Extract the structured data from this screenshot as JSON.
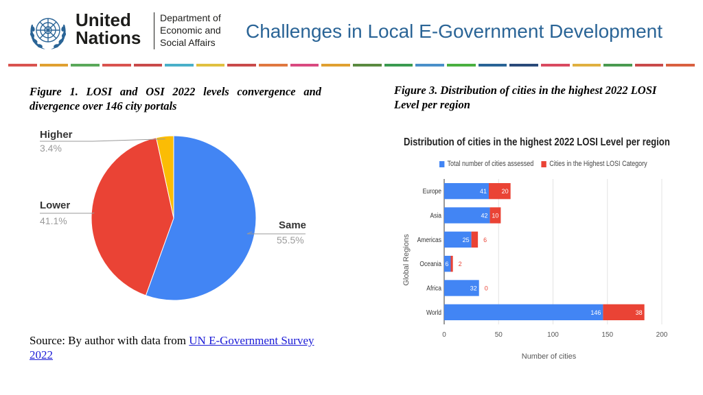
{
  "header": {
    "org_line1": "United",
    "org_line2": "Nations",
    "dept_line1": "Department of",
    "dept_line2": "Economic and",
    "dept_line3": "Social Affairs",
    "title": "Challenges in Local E-Government Development"
  },
  "colors": {
    "stripe": [
      "#d9534f",
      "#e0a030",
      "#5aa85a",
      "#d9534f",
      "#c94a4a",
      "#4ab0c9",
      "#e0c040",
      "#c94a4a",
      "#e07840",
      "#d94a80",
      "#e0a030",
      "#5a8a40",
      "#3a9a50",
      "#4a90c9",
      "#4ab040",
      "#2a6496",
      "#2a4a7a",
      "#d94a60",
      "#e0b040",
      "#4a9a50",
      "#c94a4a",
      "#d96040"
    ],
    "pie_blue": "#4285f4",
    "pie_red": "#ea4335",
    "pie_yellow": "#fbbc04",
    "bar_blue": "#4285f4",
    "bar_red": "#ea4335"
  },
  "figure1": {
    "caption": "Figure 1. LOSI and OSI 2022 levels convergence and divergence over 146 city portals",
    "chart_data": {
      "type": "pie",
      "slices": [
        {
          "label": "Same",
          "value": 55.5,
          "pct_text": "55.5%"
        },
        {
          "label": "Lower",
          "value": 41.1,
          "pct_text": "41.1%"
        },
        {
          "label": "Higher",
          "value": 3.4,
          "pct_text": "3.4%"
        }
      ]
    },
    "source_prefix": "Source:  By author with data from ",
    "source_link": "UN E-Government Survey 2022"
  },
  "figure3": {
    "caption": "Figure 3. Distribution of cities in the highest 2022 LOSI Level per region"
  },
  "chart_data": {
    "type": "bar",
    "orientation": "horizontal",
    "stacked": true,
    "title": "Distribution of cities in the highest 2022 LOSI Level per region",
    "categories": [
      "Europe",
      "Asia",
      "Americas",
      "Oceania",
      "Africa",
      "World"
    ],
    "series": [
      {
        "name": "Total number of cities assessed",
        "values": [
          41,
          42,
          25,
          6,
          32,
          146
        ]
      },
      {
        "name": "Cities in the Highest LOSI Category",
        "values": [
          20,
          10,
          6,
          2,
          0,
          38
        ]
      }
    ],
    "xlabel": "Number of cities",
    "ylabel": "Global Regions",
    "xlim": [
      0,
      200
    ],
    "xticks": [
      "0",
      "50",
      "100",
      "150",
      "200"
    ],
    "grid": true,
    "legend": "top"
  }
}
